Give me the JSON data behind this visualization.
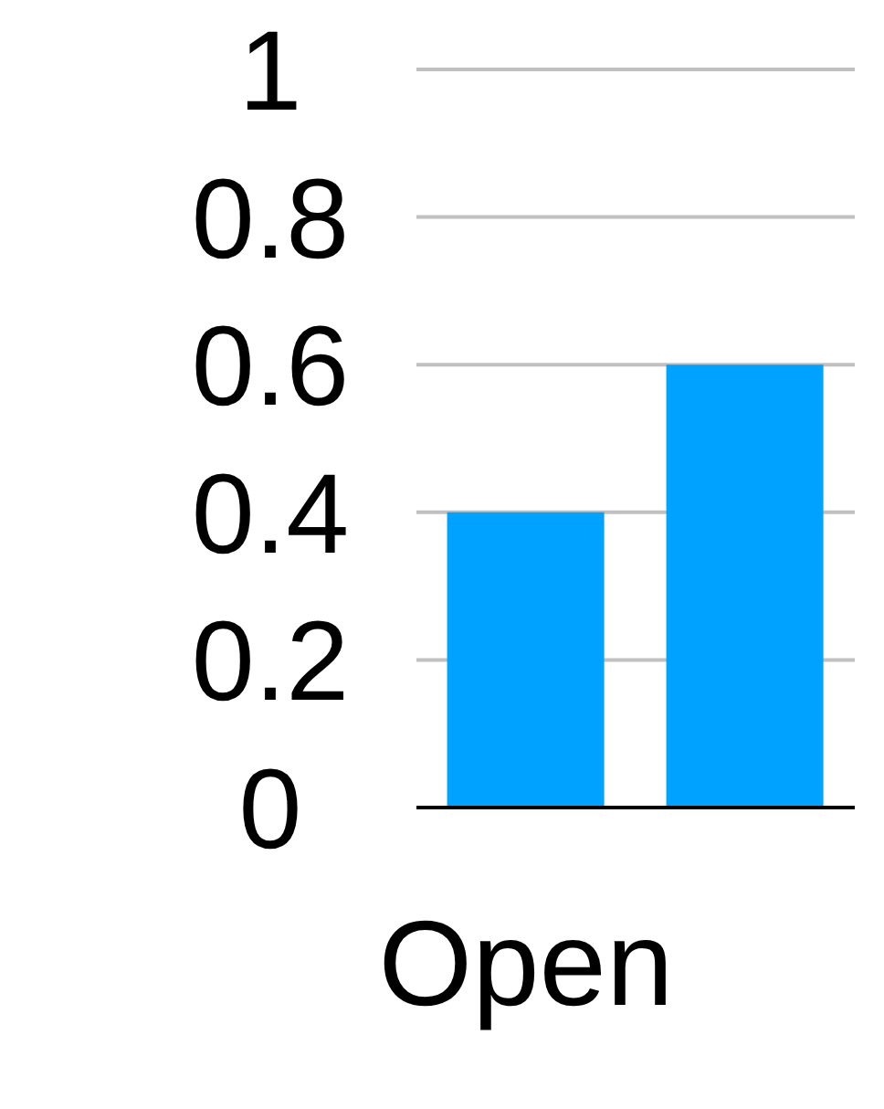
{
  "chart_data": {
    "type": "bar",
    "categories": [
      "Open",
      null
    ],
    "values": [
      0.4,
      0.6
    ],
    "color": "#00a2ff",
    "ylim": [
      0,
      1
    ],
    "yticks": [
      0,
      0.2,
      0.4,
      0.6,
      0.8,
      1
    ],
    "grid": "y"
  }
}
